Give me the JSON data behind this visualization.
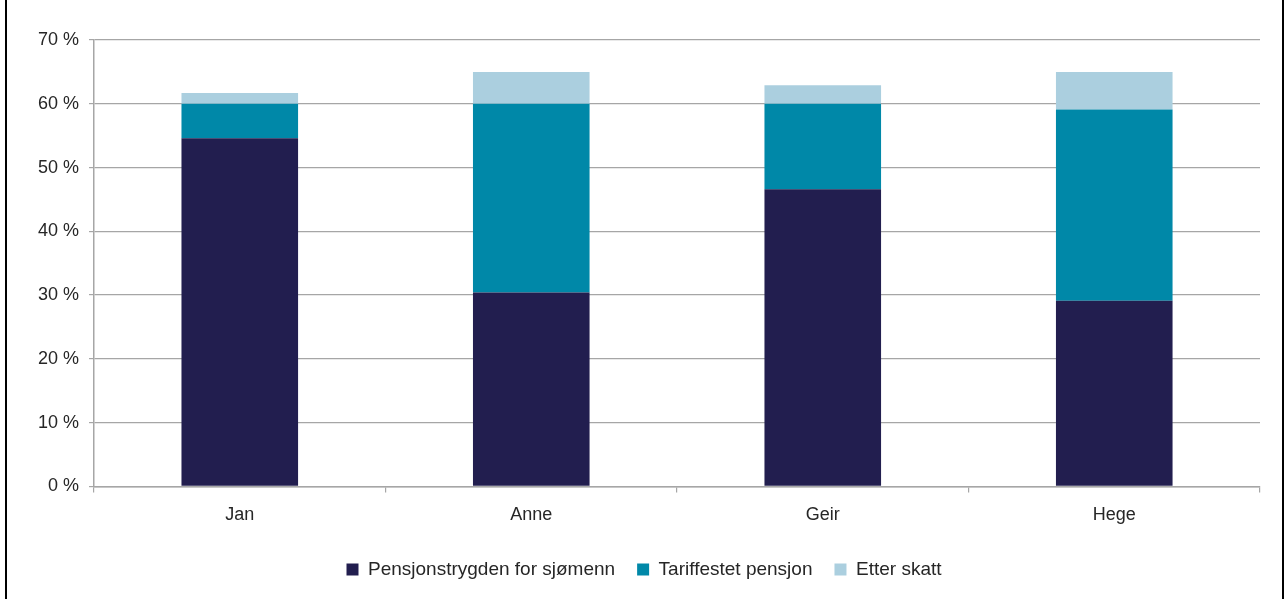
{
  "chart_data": {
    "type": "bar",
    "stacked": true,
    "categories": [
      "Jan",
      "Anne",
      "Geir",
      "Hege"
    ],
    "series": [
      {
        "name": "Pensjonstrygden for sjømenn",
        "color": "#221e4f",
        "values": [
          54.6,
          30.4,
          46.6,
          29.1
        ]
      },
      {
        "name": "Tariffestet pensjon",
        "color": "#0088a8",
        "values": [
          5.4,
          29.6,
          13.4,
          30.0
        ]
      },
      {
        "name": "Etter skatt",
        "color": "#abcfdf",
        "values": [
          1.7,
          5.0,
          2.9,
          5.9
        ]
      }
    ],
    "ylim": [
      0,
      70
    ],
    "yticks": [
      {
        "value": 0,
        "label": "0 %"
      },
      {
        "value": 10,
        "label": "10 %"
      },
      {
        "value": 20,
        "label": "20 %"
      },
      {
        "value": 30,
        "label": "30 %"
      },
      {
        "value": 40,
        "label": "40 %"
      },
      {
        "value": 50,
        "label": "50 %"
      },
      {
        "value": 60,
        "label": "60 %"
      },
      {
        "value": 70,
        "label": "70 %"
      }
    ],
    "grid": "y",
    "legend": "bottom"
  }
}
